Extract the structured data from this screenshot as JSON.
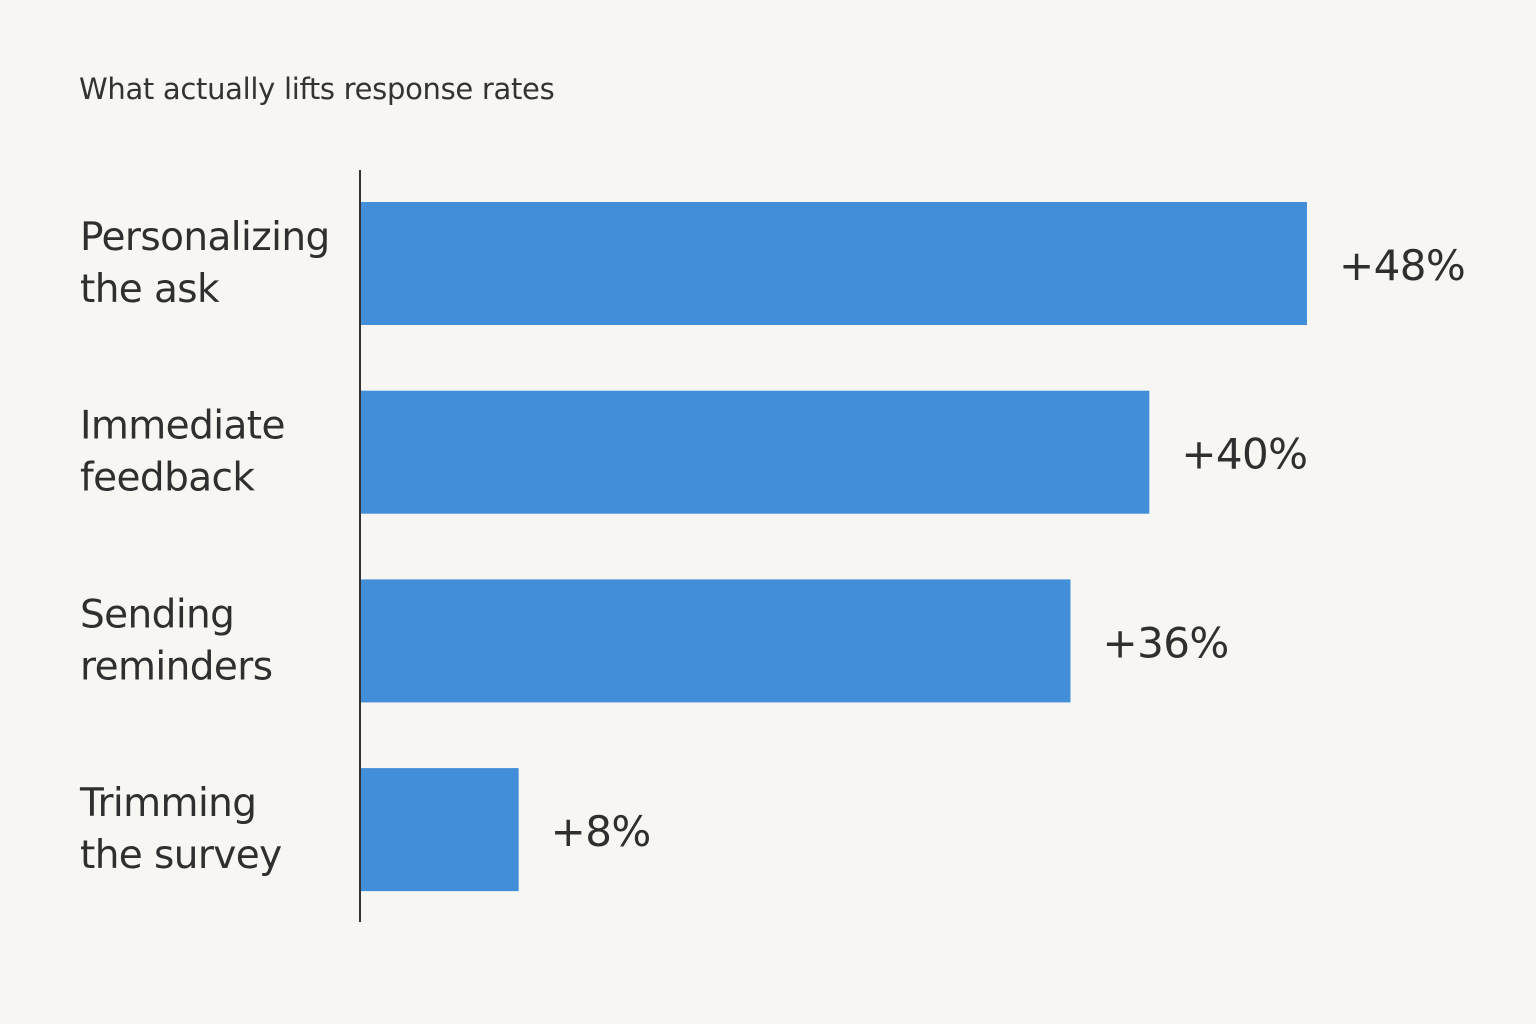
{
  "chart_data": {
    "type": "bar",
    "orientation": "horizontal",
    "title": "What actually lifts response rates",
    "categories": [
      [
        "Personalizing",
        "the ask"
      ],
      [
        "Immediate",
        "feedback"
      ],
      [
        "Sending",
        "reminders"
      ],
      [
        "Trimming",
        "the survey"
      ]
    ],
    "values": [
      48,
      40,
      36,
      8
    ],
    "value_labels": [
      "+48%",
      "+40%",
      "+36%",
      "+8%"
    ],
    "xlabel": "",
    "ylabel": "",
    "xlim": [
      0,
      48
    ],
    "grid": false,
    "legend": "none",
    "bar_color": "#438ed8",
    "axis_color": "#333333",
    "text_color": "#2f2f2f",
    "background": "#f7f6f2"
  }
}
